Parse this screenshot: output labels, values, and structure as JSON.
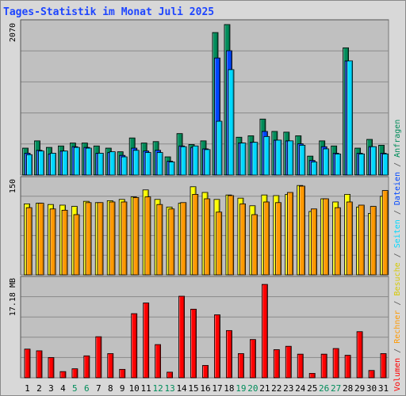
{
  "title": "Tages-Statistik im Monat Juli 2025",
  "legend": {
    "volumen": "Volumen",
    "rechner": "Rechner",
    "besuche": "Besuche",
    "seiten": "Seiten",
    "dateien": "Dateien",
    "anfragen": "Anfragen",
    "separator": " / "
  },
  "colors": {
    "background": "#d8d8d8",
    "panel": "#c0c0c0",
    "grid": "#8a8a8a",
    "title": "#1d45ff",
    "anfragen": "#008c5a",
    "dateien": "#0047ff",
    "seiten": "#00d9ff",
    "besuche": "#ffff00",
    "rechner": "#ff9900",
    "volumen": "#ff0000",
    "weekend": "#008c5a",
    "weekday": "#000000"
  },
  "chart_data": [
    {
      "type": "bar",
      "title": "Tages-Statistik im Monat Juli 2025",
      "categories": [
        "1",
        "2",
        "3",
        "4",
        "5",
        "6",
        "7",
        "8",
        "9",
        "10",
        "11",
        "12",
        "13",
        "14",
        "15",
        "16",
        "17",
        "18",
        "19",
        "20",
        "21",
        "22",
        "23",
        "24",
        "25",
        "26",
        "27",
        "28",
        "29",
        "30",
        "31"
      ],
      "weekend_days": [
        "5",
        "6",
        "12",
        "13",
        "19",
        "20",
        "26",
        "27"
      ],
      "ylabel": "2070",
      "ylim": [
        0,
        2070
      ],
      "series": [
        {
          "name": "Anfragen",
          "values": [
            370,
            470,
            380,
            400,
            440,
            440,
            400,
            370,
            320,
            510,
            440,
            460,
            250,
            570,
            420,
            470,
            1960,
            2070,
            520,
            540,
            770,
            600,
            590,
            540,
            260,
            470,
            400,
            1750,
            370,
            490,
            410
          ]
        },
        {
          "name": "Dateien",
          "values": [
            300,
            340,
            290,
            330,
            390,
            380,
            300,
            310,
            270,
            370,
            330,
            340,
            190,
            400,
            380,
            360,
            1610,
            1710,
            440,
            450,
            600,
            480,
            470,
            430,
            200,
            390,
            300,
            1570,
            300,
            390,
            300
          ]
        },
        {
          "name": "Seiten",
          "values": [
            280,
            330,
            300,
            330,
            380,
            370,
            300,
            320,
            250,
            340,
            310,
            310,
            180,
            390,
            400,
            350,
            740,
            1450,
            440,
            450,
            530,
            480,
            470,
            410,
            180,
            360,
            290,
            1570,
            290,
            390,
            290
          ]
        }
      ]
    },
    {
      "type": "bar",
      "categories": [
        "1",
        "2",
        "3",
        "4",
        "5",
        "6",
        "7",
        "8",
        "9",
        "10",
        "11",
        "12",
        "13",
        "14",
        "15",
        "16",
        "17",
        "18",
        "19",
        "20",
        "21",
        "22",
        "23",
        "24",
        "25",
        "26",
        "27",
        "28",
        "29",
        "30",
        "31"
      ],
      "ylabel": "150",
      "ylim": [
        0,
        150
      ],
      "series": [
        {
          "name": "Besuche",
          "values": [
            112,
            113,
            111,
            110,
            108,
            116,
            114,
            117,
            119,
            123,
            134,
            119,
            107,
            113,
            139,
            130,
            119,
            126,
            121,
            109,
            126,
            125,
            127,
            141,
            100,
            120,
            115,
            127,
            107,
            97,
            124
          ]
        },
        {
          "name": "Rechner",
          "values": [
            106,
            113,
            104,
            102,
            95,
            114,
            114,
            115,
            115,
            122,
            123,
            111,
            104,
            114,
            127,
            120,
            99,
            125,
            112,
            95,
            115,
            114,
            130,
            140,
            104,
            120,
            106,
            115,
            110,
            108,
            133
          ]
        }
      ]
    },
    {
      "type": "bar",
      "categories": [
        "1",
        "2",
        "3",
        "4",
        "5",
        "6",
        "7",
        "8",
        "9",
        "10",
        "11",
        "12",
        "13",
        "14",
        "15",
        "16",
        "17",
        "18",
        "19",
        "20",
        "21",
        "22",
        "23",
        "24",
        "25",
        "26",
        "27",
        "28",
        "29",
        "30",
        "31"
      ],
      "ylabel": "17.18 MB",
      "ylim": [
        0,
        17.18
      ],
      "series": [
        {
          "name": "Volumen",
          "values": [
            5.1,
            4.8,
            3.6,
            1.1,
            1.6,
            3.9,
            7.3,
            4.3,
            1.5,
            11.4,
            13.3,
            5.9,
            1.0,
            14.5,
            12.2,
            2.2,
            11.2,
            8.4,
            4.3,
            6.8,
            16.6,
            5.0,
            5.6,
            4.2,
            0.8,
            4.2,
            5.2,
            4.0,
            8.2,
            1.3,
            4.3
          ]
        }
      ]
    }
  ]
}
